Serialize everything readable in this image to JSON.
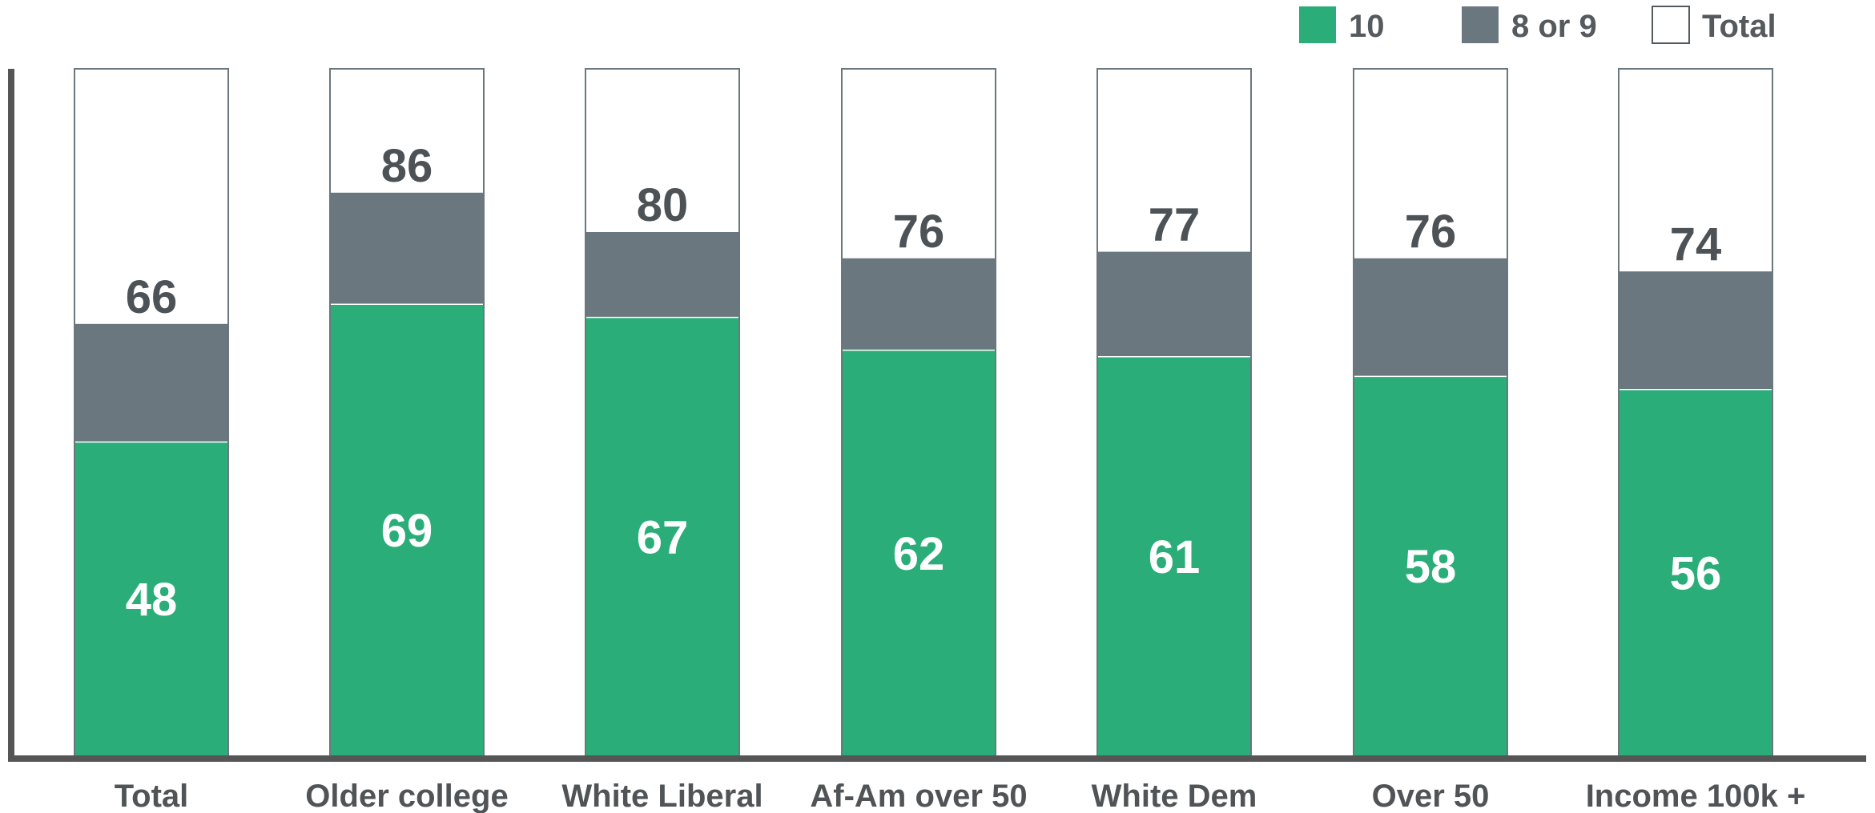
{
  "chart_data": {
    "type": "bar",
    "stacked": true,
    "categories": [
      "Total",
      "Older college",
      "White Liberal",
      "Af-Am over 50",
      "White Dem",
      "Over 50",
      "Income 100k +"
    ],
    "series": [
      {
        "name": "10",
        "values": [
          48,
          69,
          67,
          62,
          61,
          58,
          56
        ],
        "color": "#2aad78"
      },
      {
        "name": "8 or 9",
        "values": [
          18,
          17,
          13,
          14,
          16,
          18,
          18
        ],
        "color": "#6b777e"
      }
    ],
    "totals": [
      66,
      86,
      80,
      76,
      77,
      76,
      74
    ],
    "legend": [
      {
        "label": "10",
        "color": "#2aad78"
      },
      {
        "label": "8 or 9",
        "color": "#6b777e"
      },
      {
        "label": "Total",
        "color": "#ffffff"
      }
    ],
    "legend_position": "top-right",
    "ylim": [
      0,
      105
    ],
    "grid": false,
    "colors": {
      "ten": "#2aad78",
      "eight_nine": "#6b777e",
      "total_fill": "#ffffff",
      "bar_outline": "#6b777e",
      "axis": "#555555",
      "dark_label": "#4d5256",
      "light_label": "#ffffff"
    }
  }
}
